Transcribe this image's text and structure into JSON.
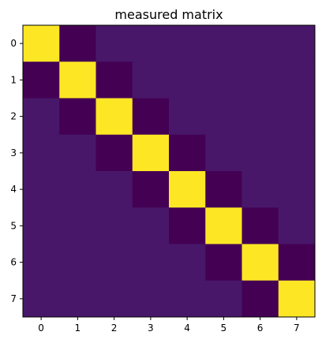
{
  "chart_data": {
    "type": "heatmap",
    "title": "measured matrix",
    "xlabel": "",
    "ylabel": "",
    "x_ticks": [
      "0",
      "1",
      "2",
      "3",
      "4",
      "5",
      "6",
      "7"
    ],
    "y_ticks": [
      "0",
      "1",
      "2",
      "3",
      "4",
      "5",
      "6",
      "7"
    ],
    "colormap": "viridis",
    "value_range": [
      -1,
      1
    ],
    "grid": false,
    "values": [
      [
        1,
        -1,
        0,
        0,
        0,
        0,
        0,
        0
      ],
      [
        -1,
        1,
        -1,
        0,
        0,
        0,
        0,
        0
      ],
      [
        0,
        -1,
        1,
        -1,
        0,
        0,
        0,
        0
      ],
      [
        0,
        0,
        -1,
        1,
        -1,
        0,
        0,
        0
      ],
      [
        0,
        0,
        0,
        -1,
        1,
        -1,
        0,
        0
      ],
      [
        0,
        0,
        0,
        0,
        -1,
        1,
        -1,
        0
      ],
      [
        0,
        0,
        0,
        0,
        0,
        -1,
        1,
        -1
      ],
      [
        0,
        0,
        0,
        0,
        0,
        0,
        -1,
        1
      ]
    ],
    "color_stops": {
      "low": "#440154",
      "mid": "#481769",
      "high": "#fde725"
    }
  }
}
